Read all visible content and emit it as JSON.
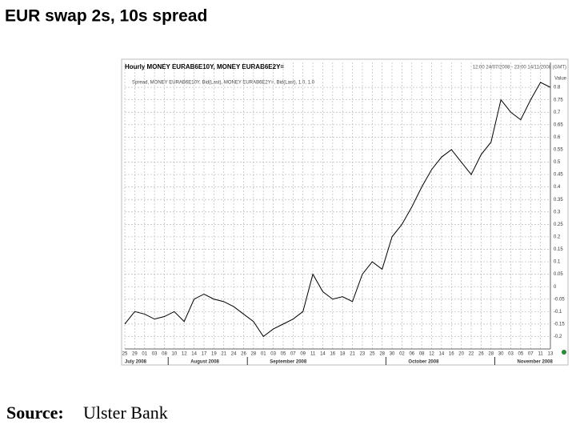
{
  "chart_data": {
    "type": "line",
    "title": "EUR swap 2s, 10s spread",
    "subtitle": "Hourly MONEY EURAB6E10Y, MONEY EURAB6E2Y=",
    "legend_text": "Spread, MONEY EURAB6E10Y, Bid(Last), MONEY EURAB6E2Y=, Bid(Last), 1.0, 1.0",
    "date_range": "12:00 24/07/2008 - 23:00 14/11/2008 (GMT)",
    "y_label": "Value",
    "source_label": "Source:",
    "source": "Ulster Bank",
    "months": [
      "July 2008",
      "August 2008",
      "September 2008",
      "October 2008",
      "November 2008"
    ],
    "categories": [
      "25",
      "29",
      "01",
      "03",
      "08",
      "10",
      "12",
      "14",
      "17",
      "19",
      "21",
      "24",
      "26",
      "28",
      "01",
      "03",
      "05",
      "07",
      "09",
      "11",
      "14",
      "16",
      "18",
      "21",
      "23",
      "25",
      "28",
      "30",
      "02",
      "06",
      "08",
      "12",
      "14",
      "16",
      "20",
      "22",
      "26",
      "28",
      "30",
      "03",
      "05",
      "07",
      "11",
      "13"
    ],
    "series": [
      {
        "name": "Spread",
        "color": "#000000",
        "values": [
          -0.15,
          -0.1,
          -0.11,
          -0.13,
          -0.12,
          -0.1,
          -0.14,
          -0.05,
          -0.03,
          -0.05,
          -0.06,
          -0.08,
          -0.11,
          -0.14,
          -0.2,
          -0.17,
          -0.15,
          -0.13,
          -0.1,
          0.05,
          -0.02,
          -0.05,
          -0.04,
          -0.06,
          0.05,
          0.1,
          0.07,
          0.2,
          0.25,
          0.32,
          0.4,
          0.47,
          0.52,
          0.55,
          0.5,
          0.45,
          0.53,
          0.58,
          0.75,
          0.7,
          0.67,
          0.75,
          0.82,
          0.8
        ]
      }
    ],
    "ylim": [
      -0.25,
      0.9
    ],
    "yticks": [
      -0.2,
      -0.15,
      -0.1,
      -0.05,
      0,
      0.05,
      0.1,
      0.15,
      0.2,
      0.25,
      0.3,
      0.35,
      0.4,
      0.45,
      0.5,
      0.55,
      0.6,
      0.65,
      0.7,
      0.75,
      0.8
    ],
    "grid": true
  }
}
